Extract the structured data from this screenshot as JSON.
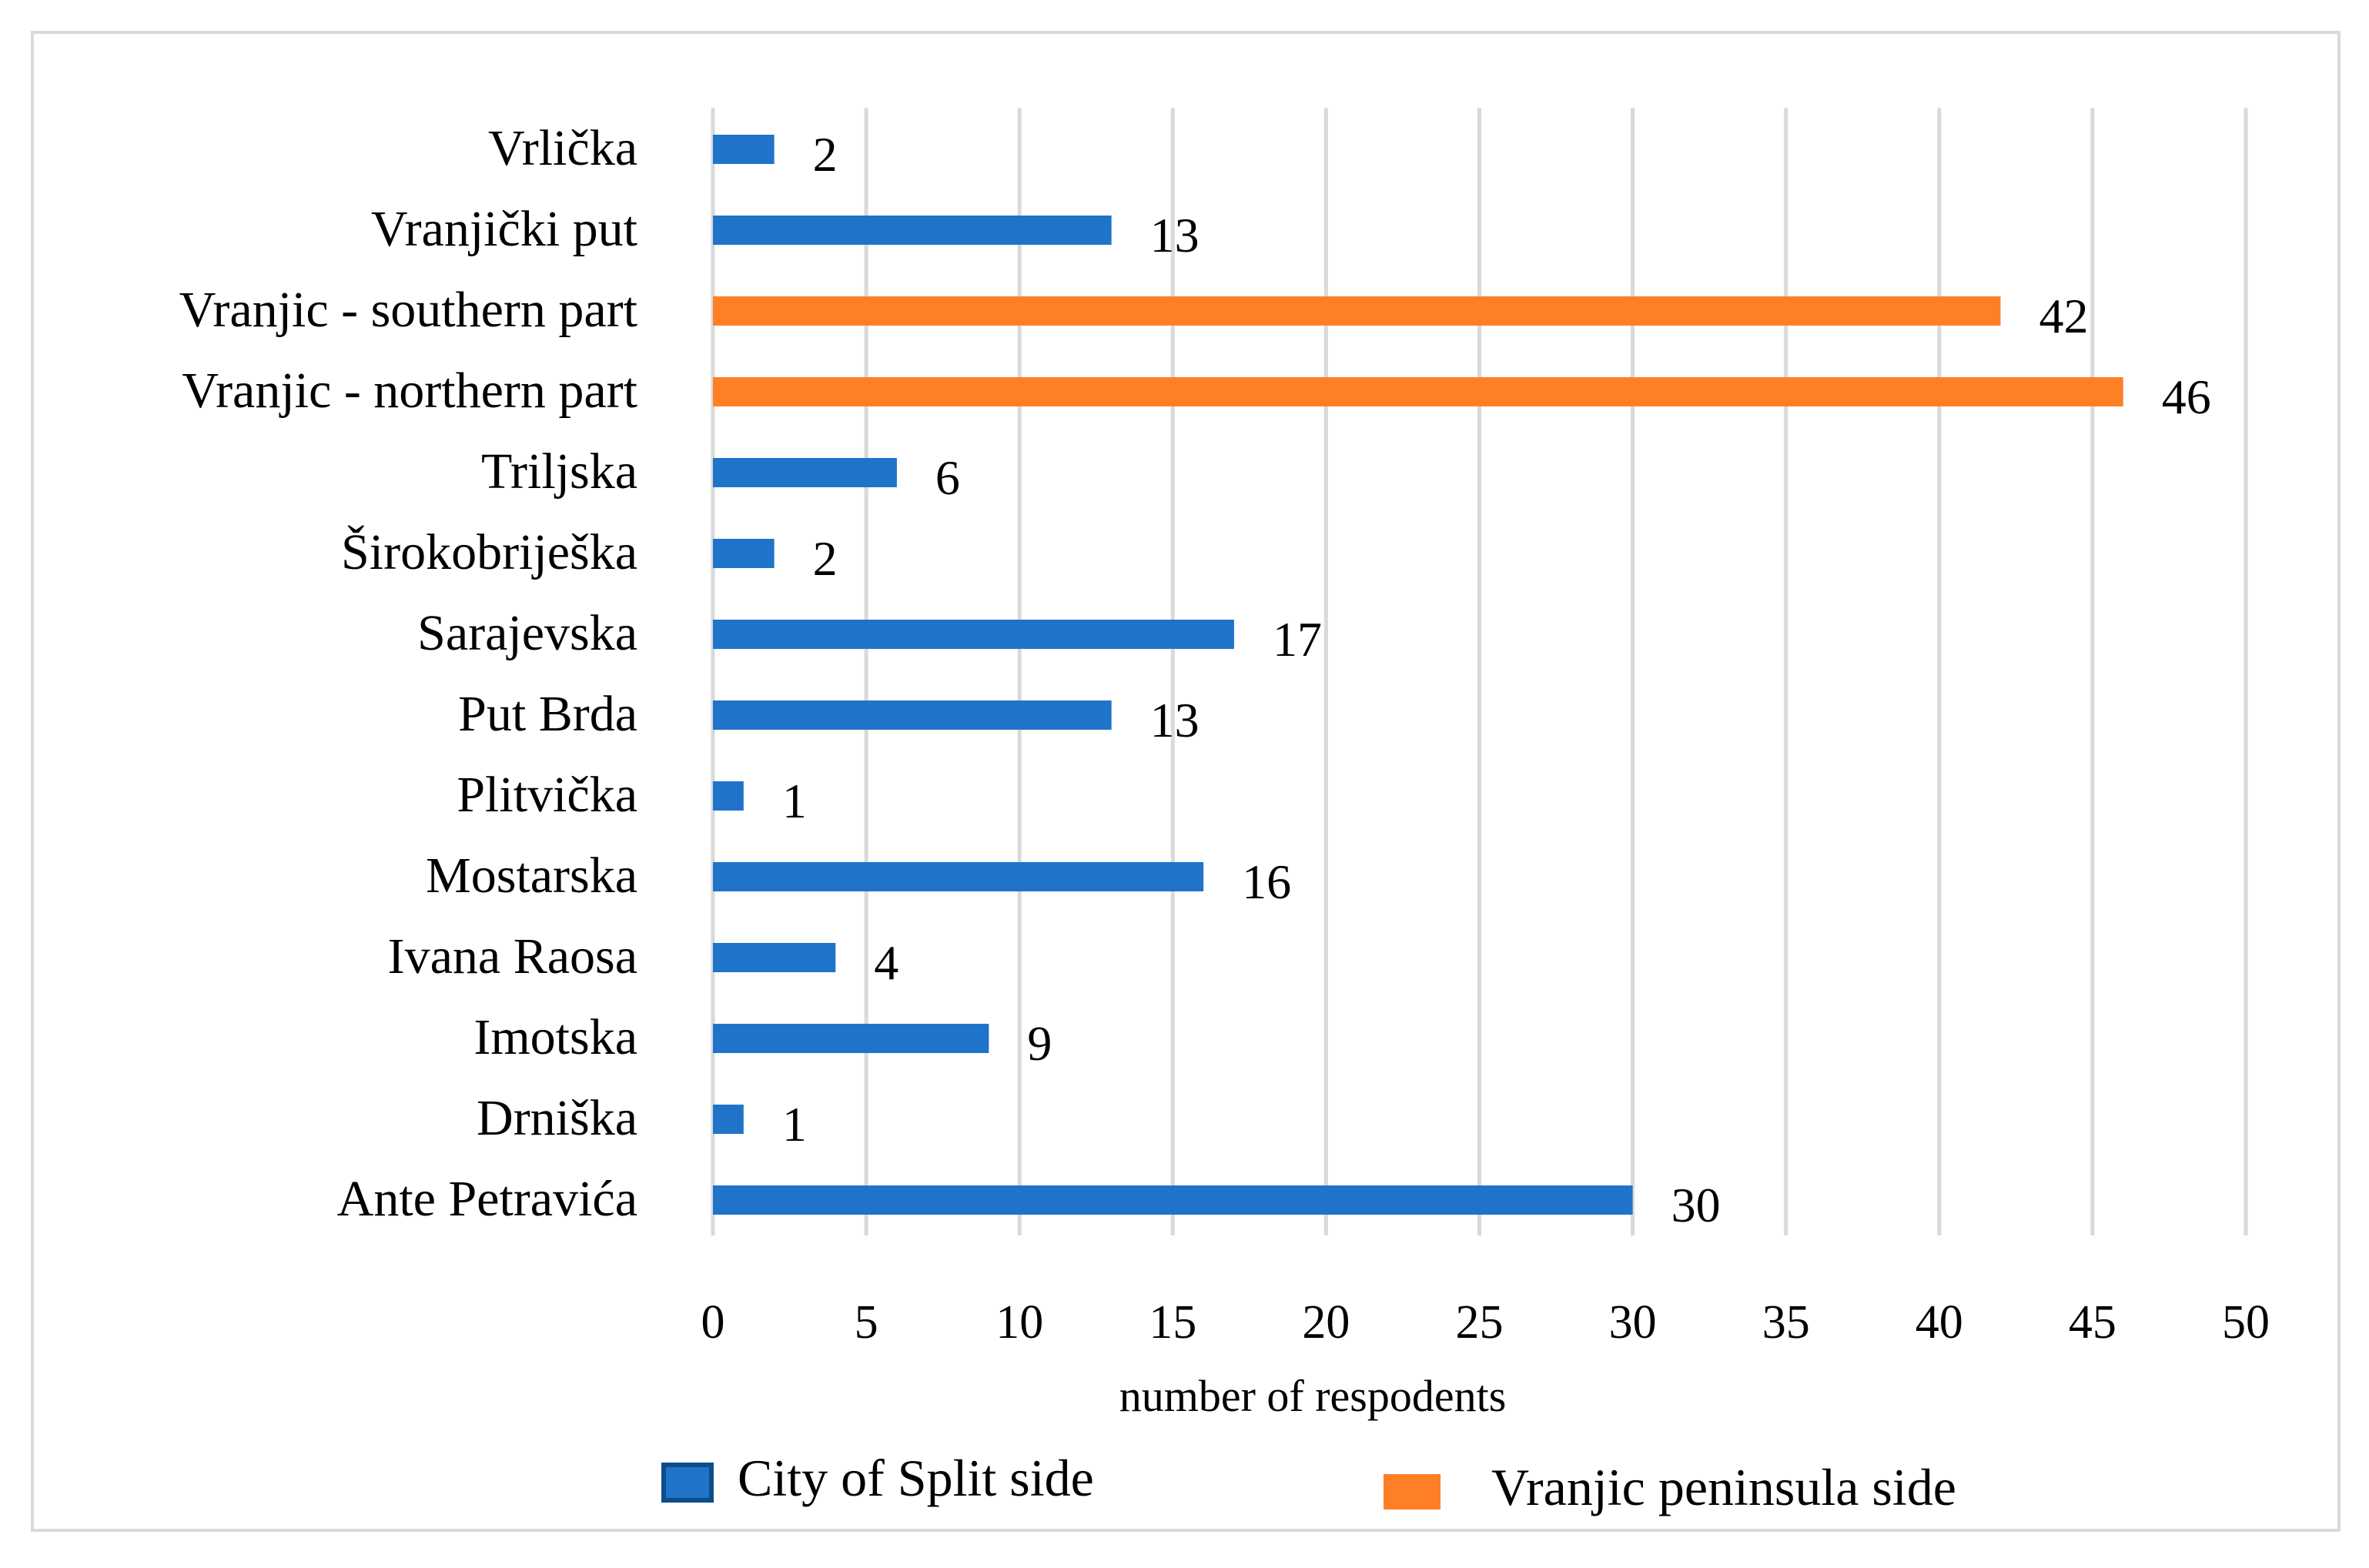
{
  "chart_data": {
    "type": "bar",
    "orientation": "horizontal",
    "title": "",
    "xlabel": "number of respodents",
    "ylabel": "",
    "xlim": [
      0,
      50
    ],
    "x_ticks": [
      0,
      5,
      10,
      15,
      20,
      25,
      30,
      35,
      40,
      45,
      50
    ],
    "grid": "vertical",
    "legend_position": "bottom",
    "categories": [
      "Vrlička",
      "Vranjički put",
      "Vranjic - southern part",
      "Vranjic - northern part",
      "Triljska",
      "Širokobriješka",
      "Sarajevska",
      "Put Brda",
      "Plitvička",
      "Mostarska",
      "Ivana Raosa",
      "Imotska",
      "Drniška",
      "Ante Petravića"
    ],
    "values": [
      2,
      13,
      42,
      46,
      6,
      2,
      17,
      13,
      1,
      16,
      4,
      9,
      1,
      30
    ],
    "groups": [
      "City of Split side",
      "City of Split side",
      "Vranjic peninsula side",
      "Vranjic peninsula side",
      "City of Split side",
      "City of Split side",
      "City of Split side",
      "City of Split side",
      "City of Split side",
      "City of Split side",
      "City of Split side",
      "City of Split side",
      "City of Split side",
      "City of Split side"
    ],
    "series": [
      {
        "name": "City of Split side",
        "color": "#1f74c9"
      },
      {
        "name": "Vranjic peninsula side",
        "color": "#ff7f27"
      }
    ]
  },
  "colors": {
    "grid": "#d9d9d9",
    "frame": "#d9d9d9"
  }
}
